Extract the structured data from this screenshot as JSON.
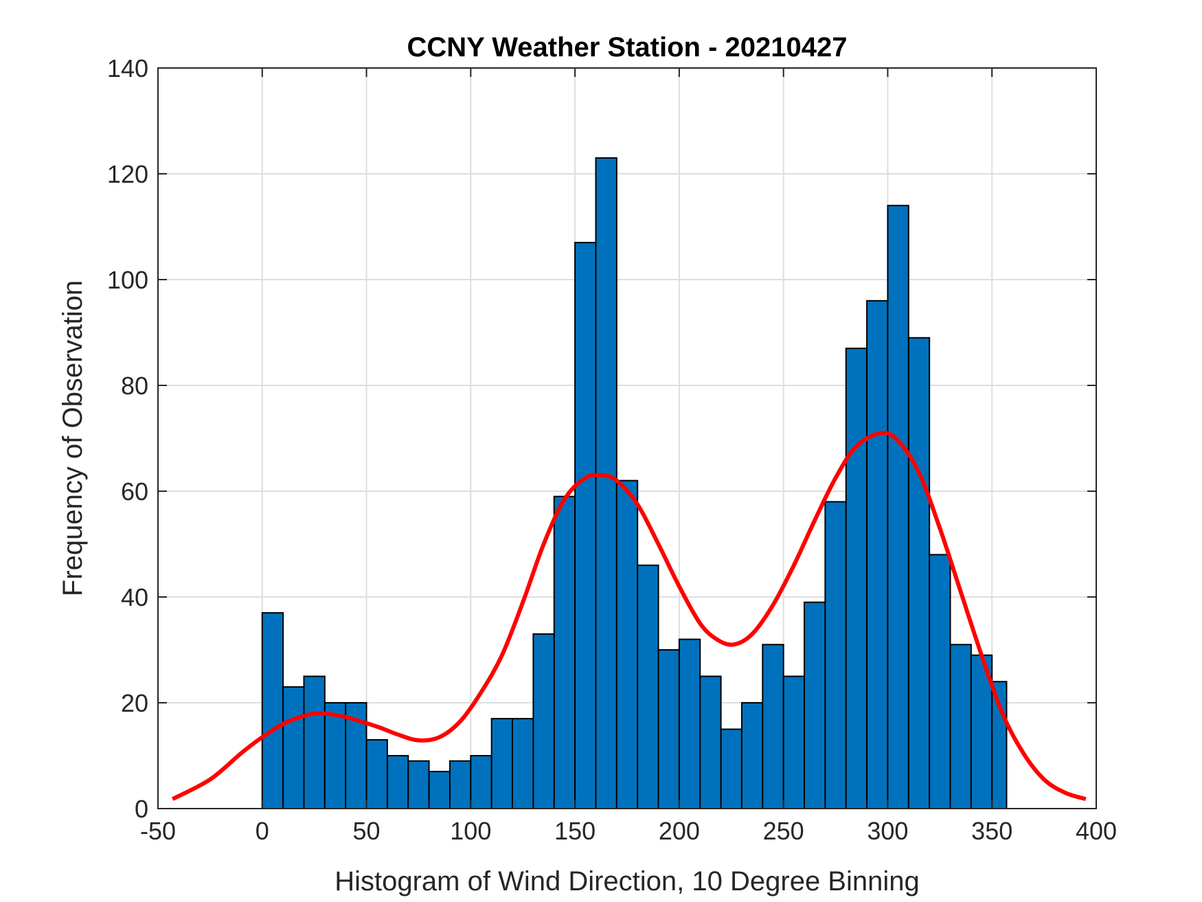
{
  "chart_data": {
    "type": "bar",
    "title": "CCNY Weather Station - 20210427",
    "xlabel": "Histogram of Wind Direction, 10 Degree Binning",
    "ylabel": "Frequency of Observation",
    "xlim": [
      -50,
      400
    ],
    "ylim": [
      0,
      140
    ],
    "x_ticks": [
      -50,
      0,
      50,
      100,
      150,
      200,
      250,
      300,
      350,
      400
    ],
    "y_ticks": [
      0,
      20,
      40,
      60,
      80,
      100,
      120,
      140
    ],
    "grid": true,
    "bin_edges": [
      0,
      10,
      20,
      30,
      40,
      50,
      60,
      70,
      80,
      90,
      100,
      110,
      120,
      130,
      140,
      150,
      160,
      170,
      180,
      190,
      200,
      210,
      220,
      230,
      240,
      250,
      260,
      270,
      280,
      290,
      300,
      310,
      320,
      330,
      340,
      350,
      357
    ],
    "values": [
      37,
      23,
      25,
      20,
      20,
      13,
      10,
      9,
      7,
      9,
      10,
      17,
      17,
      33,
      59,
      107,
      123,
      62,
      46,
      30,
      32,
      25,
      15,
      20,
      31,
      25,
      39,
      58,
      87,
      96,
      114,
      89,
      48,
      31,
      29,
      24
    ],
    "bar_color": "#0072BD",
    "fit_curve": {
      "color": "#FF0000",
      "x": [
        -43,
        -25,
        -10,
        0,
        10,
        20,
        28,
        40,
        55,
        65,
        75,
        85,
        95,
        105,
        115,
        125,
        135,
        145,
        155,
        163,
        170,
        180,
        190,
        200,
        210,
        218,
        226,
        235,
        245,
        255,
        265,
        275,
        285,
        297,
        305,
        315,
        325,
        335,
        345,
        355,
        365,
        375,
        385,
        395
      ],
      "y": [
        1.8,
        5.5,
        10.5,
        13.5,
        16,
        17.5,
        18,
        17.3,
        15.5,
        14,
        12.9,
        13.5,
        16.5,
        22,
        29,
        39,
        50,
        58.5,
        62.5,
        63,
        62,
        57.5,
        50,
        42,
        35,
        32,
        31,
        33,
        38.5,
        46,
        54.5,
        62.5,
        68.5,
        71,
        69.5,
        63.5,
        53,
        41,
        29,
        18,
        10.5,
        5.5,
        3,
        1.8
      ]
    }
  }
}
